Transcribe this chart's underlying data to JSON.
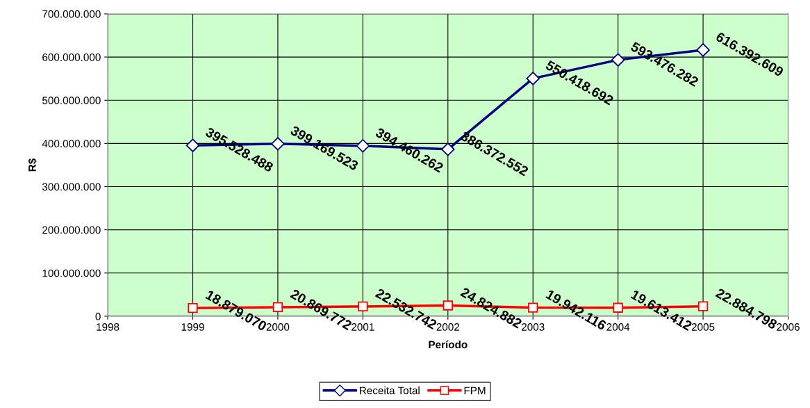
{
  "chart_data": {
    "type": "line",
    "xlabel": "Período",
    "ylabel": "R$",
    "x": [
      1999,
      2000,
      2001,
      2002,
      2003,
      2004,
      2005
    ],
    "series": [
      {
        "name": "Receita Total",
        "color": "#000080",
        "marker": "diamond",
        "values": [
          395528488,
          399169523,
          394460262,
          386372552,
          550418692,
          593476282,
          616392609
        ],
        "value_labels": [
          "395.528.488",
          "399.169.523",
          "394.460.262",
          "386.372.552",
          "550.418.692",
          "593.476.282",
          "616.392.609"
        ]
      },
      {
        "name": "FPM",
        "color": "#ff0000",
        "marker": "square",
        "values": [
          18879070,
          20869772,
          22532742,
          24824882,
          19942116,
          19613412,
          22884798
        ],
        "value_labels": [
          "18.879.070",
          "20.869.772",
          "22.532.742",
          "24.824.882",
          "19.942.116",
          "19.613.412",
          "22.884.798"
        ]
      }
    ],
    "xlim": [
      1998,
      2006
    ],
    "xticks": [
      1998,
      1999,
      2000,
      2001,
      2002,
      2003,
      2004,
      2005,
      2006
    ],
    "ylim": [
      0,
      700000000
    ],
    "yticks": [
      {
        "value": 0,
        "label": "0"
      },
      {
        "value": 100000000,
        "label": "100.000.000"
      },
      {
        "value": 200000000,
        "label": "200.000.000"
      },
      {
        "value": 300000000,
        "label": "300.000.000"
      },
      {
        "value": 400000000,
        "label": "400.000.000"
      },
      {
        "value": 500000000,
        "label": "500.000.000"
      },
      {
        "value": 600000000,
        "label": "600.000.000"
      },
      {
        "value": 700000000,
        "label": "700.000.000"
      }
    ],
    "grid": true,
    "legend": "bottom",
    "line_style": "solid"
  }
}
